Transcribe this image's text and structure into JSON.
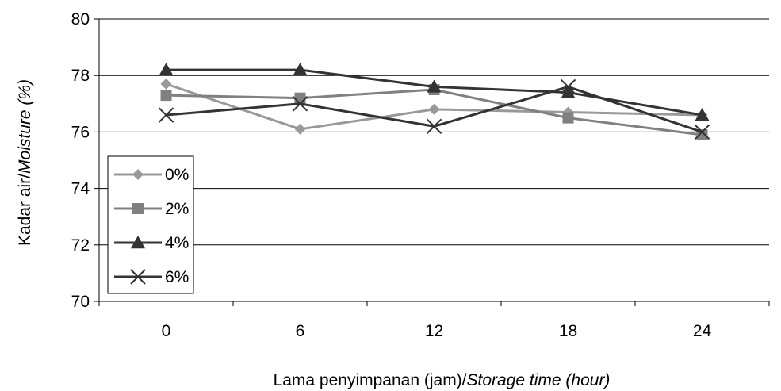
{
  "chart_data": {
    "type": "line",
    "title": "",
    "xlabel": "Lama penyimpanan (jam)/",
    "xlabel_italic": "Storage time (hour)",
    "ylabel": "Kadar air/",
    "ylabel_italic": "Moisture (%)",
    "categories": [
      "0",
      "6",
      "12",
      "18",
      "24"
    ],
    "ylim": [
      70,
      80
    ],
    "yticks": [
      "70",
      "72",
      "74",
      "76",
      "78",
      "80"
    ],
    "grid": "horizontal",
    "legend_position": "left",
    "series": [
      {
        "name": "0%",
        "marker": "diamond",
        "color": "#999999",
        "values": [
          77.7,
          76.1,
          76.8,
          76.7,
          76.6
        ]
      },
      {
        "name": "2%",
        "marker": "square",
        "color": "#808080",
        "values": [
          77.3,
          77.2,
          77.5,
          76.5,
          75.9
        ]
      },
      {
        "name": "4%",
        "marker": "triangle",
        "color": "#333333",
        "values": [
          78.2,
          78.2,
          77.6,
          77.4,
          76.6
        ]
      },
      {
        "name": "6%",
        "marker": "x",
        "color": "#333333",
        "values": [
          76.6,
          77.0,
          76.2,
          77.6,
          76.0
        ]
      }
    ]
  }
}
